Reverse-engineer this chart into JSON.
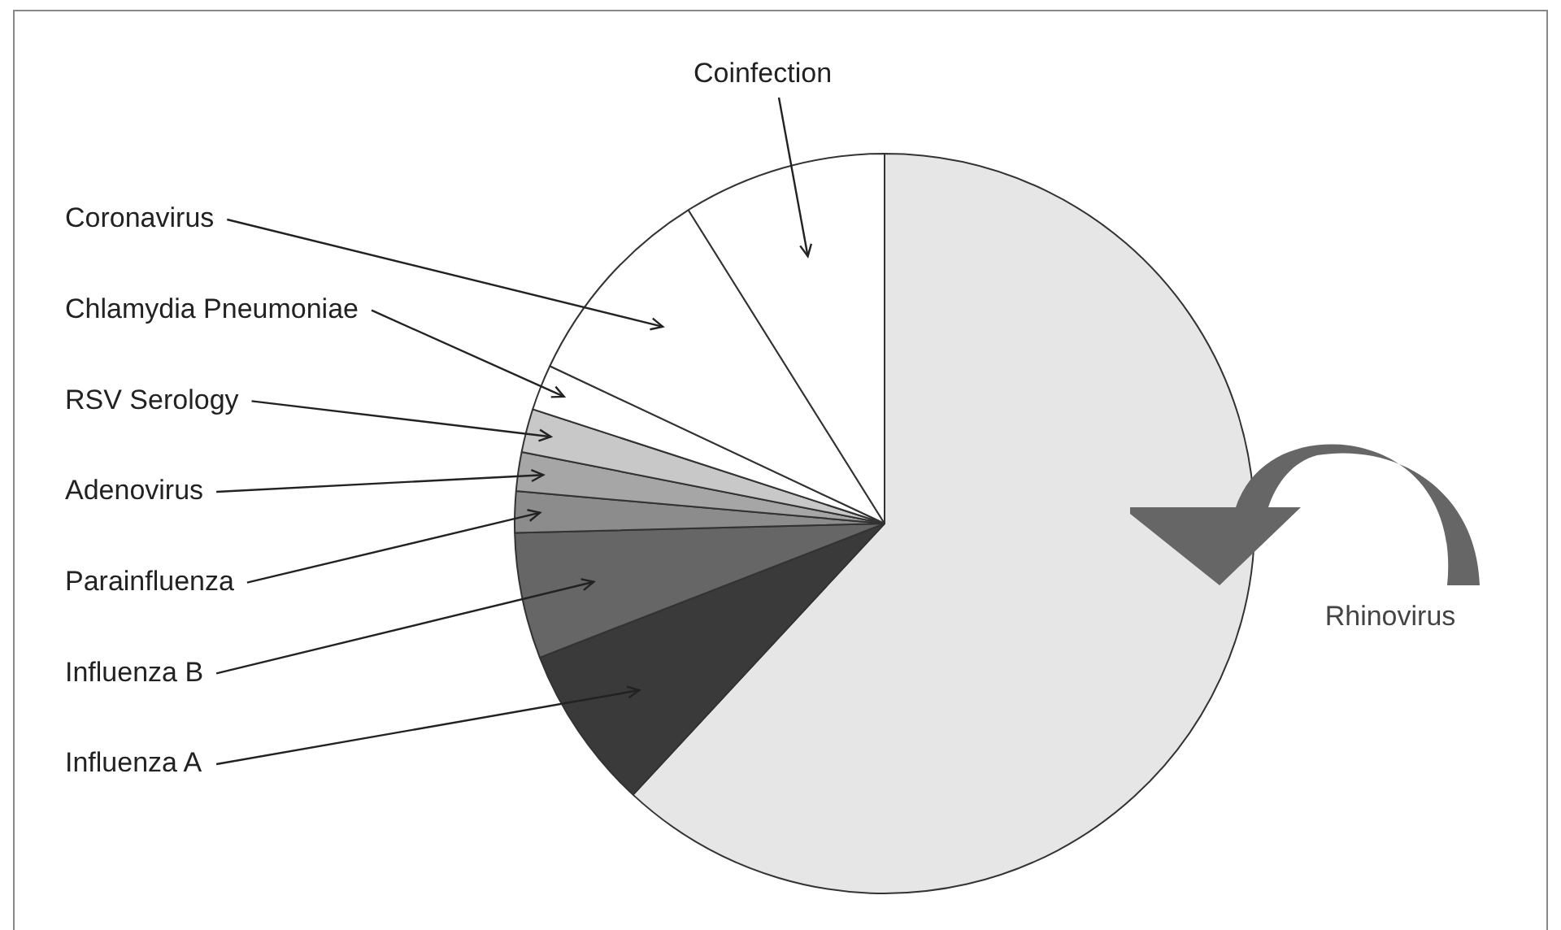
{
  "chart_data": {
    "type": "pie",
    "categories": [
      "Rhinovirus",
      "Influenza A",
      "Influenza B",
      "Parainfluenza",
      "Adenovirus",
      "RSV Serology",
      "Chlamydia Pneumoniae",
      "Coronavirus",
      "Coinfection"
    ],
    "values": [
      61.9,
      7.2,
      5.5,
      1.8,
      1.7,
      1.9,
      2.0,
      9.1,
      8.9
    ],
    "colors": [
      "#e6e6e6",
      "#3a3a3a",
      "#666666",
      "#8c8c8c",
      "#a6a6a6",
      "#c8c8c8",
      "#ffffff",
      "#ffffff",
      "#ffffff"
    ],
    "legend": false
  }
}
